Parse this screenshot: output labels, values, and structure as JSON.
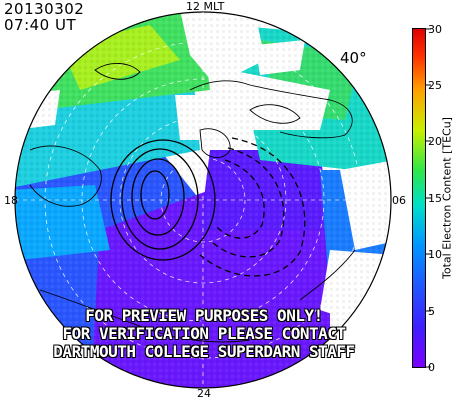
{
  "header": {
    "date": "20130302",
    "time": "07:40 UT"
  },
  "mlt_labels": {
    "top": "12 MLT",
    "left": "18",
    "right": "06",
    "bottom": "24"
  },
  "lat_label": "40°",
  "warning_lines": [
    "FOR PREVIEW PURPOSES ONLY!",
    "FOR VERIFICATION PLEASE CONTACT",
    "DARTMOUTH COLLEGE SUPERDARN STAFF"
  ],
  "colorbar": {
    "title": "Total Electron Content [TECu]",
    "min": 0,
    "max": 30,
    "tick_values": [
      0,
      5,
      10,
      15,
      20,
      25,
      30
    ],
    "colors": [
      "#7b00ff",
      "#3030ff",
      "#0096ff",
      "#00e0c8",
      "#2ee64a",
      "#c8f000",
      "#ffa000",
      "#ff3000",
      "#e00000"
    ]
  },
  "chart_data": {
    "type": "heatmap",
    "title": "",
    "projection": "polar magnetic local time",
    "xlabel": "MLT",
    "ylabel": "",
    "latitude_boundary_deg": 40,
    "colorbar_label": "Total Electron Content [TECu]",
    "colorbar_range": [
      0,
      30
    ],
    "regions": [
      {
        "mlt_sector": "07-10",
        "tec_approx": 18
      },
      {
        "mlt_sector": "10-14",
        "tec_approx": 15
      },
      {
        "mlt_sector": "14-17",
        "tec_approx": 10
      },
      {
        "mlt_sector": "17-20",
        "tec_approx": 7
      },
      {
        "mlt_sector": "20-05",
        "tec_approx": 3
      },
      {
        "mlt_sector": "05-07",
        "tec_approx": 6
      }
    ]
  }
}
